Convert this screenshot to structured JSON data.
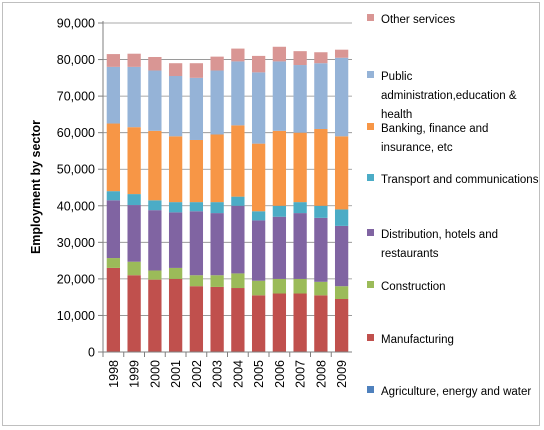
{
  "chart_data": {
    "type": "bar",
    "stacked": true,
    "title": "",
    "xlabel": "",
    "ylabel": "Employment by sector",
    "ylim": [
      0,
      90000
    ],
    "yticks": [
      "0",
      "10,000",
      "20,000",
      "30,000",
      "40,000",
      "50,000",
      "60,000",
      "70,000",
      "80,000",
      "90,000"
    ],
    "grid": true,
    "legend_position": "right",
    "categories": [
      "1998",
      "1999",
      "2000",
      "2001",
      "2002",
      "2003",
      "2004",
      "2005",
      "2006",
      "2007",
      "2008",
      "2009"
    ],
    "series": [
      {
        "name": "Agriculture, energy and water",
        "color": "#4f81bd",
        "values": [
          0,
          0,
          0,
          0,
          0,
          0,
          0,
          0,
          0,
          0,
          0,
          0
        ]
      },
      {
        "name": "Manufacturing",
        "color": "#c0504d",
        "values": [
          23000,
          21000,
          19800,
          20000,
          18000,
          17800,
          17500,
          15500,
          16000,
          16000,
          15500,
          14500
        ]
      },
      {
        "name": "Construction",
        "color": "#9bbb59",
        "values": [
          2700,
          3700,
          2500,
          3000,
          3000,
          3200,
          4000,
          4000,
          4000,
          4000,
          3700,
          3500
        ]
      },
      {
        "name": "Distribution, hotels and restaurants",
        "color": "#8064a2",
        "values": [
          15800,
          15500,
          16500,
          15200,
          17500,
          17000,
          18500,
          16500,
          17000,
          18000,
          17500,
          16500
        ]
      },
      {
        "name": "Transport and communications",
        "color": "#4bacc6",
        "values": [
          2500,
          3000,
          2700,
          2800,
          2500,
          3000,
          2500,
          2500,
          3000,
          3000,
          3300,
          4500
        ]
      },
      {
        "name": "Banking, finance and insurance, etc",
        "color": "#f79646",
        "values": [
          18500,
          18300,
          19000,
          18000,
          17000,
          18500,
          19500,
          18500,
          20500,
          19000,
          21000,
          20000
        ]
      },
      {
        "name": "Public administration,education & health",
        "color": "#95b3d7",
        "values": [
          15500,
          16500,
          16500,
          16500,
          17000,
          17500,
          17500,
          19500,
          19000,
          18500,
          18000,
          21500
        ]
      },
      {
        "name": "Other services",
        "color": "#d99694",
        "values": [
          3500,
          3600,
          3700,
          3500,
          4000,
          3800,
          3500,
          4500,
          4000,
          3800,
          3000,
          2200
        ]
      }
    ]
  }
}
